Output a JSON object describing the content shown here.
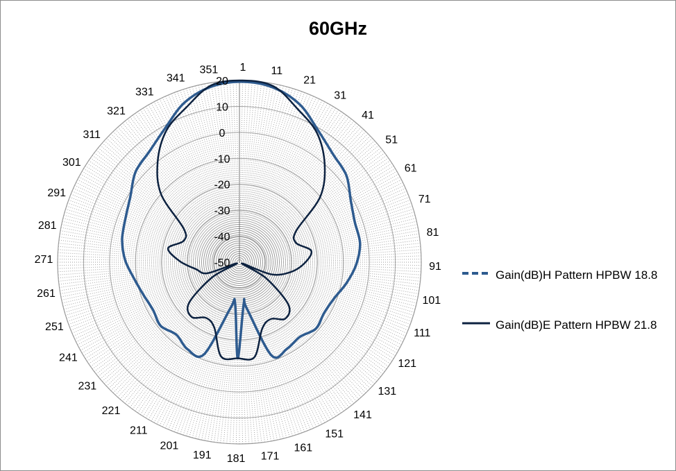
{
  "chart_data": {
    "type": "radar",
    "title": "60GHz",
    "angle_labels": [
      "1",
      "11",
      "21",
      "31",
      "41",
      "51",
      "61",
      "71",
      "81",
      "91",
      "101",
      "111",
      "121",
      "131",
      "141",
      "151",
      "161",
      "171",
      "181",
      "191",
      "201",
      "211",
      "221",
      "231",
      "241",
      "251",
      "261",
      "271",
      "281",
      "291",
      "301",
      "311",
      "321",
      "331",
      "341",
      "351"
    ],
    "radial_labels": [
      "-50",
      "-40",
      "-30",
      "-20",
      "-10",
      "0",
      "10",
      "20"
    ],
    "rlim": [
      -50,
      20
    ],
    "grid": true,
    "legend_position": "right",
    "series": [
      {
        "name": "Gain(dB)H Pattern HPBW 18.8",
        "style": "dashed",
        "color": "#2e5b8f",
        "angles": [
          1,
          11,
          21,
          31,
          41,
          51,
          61,
          71,
          81,
          91,
          101,
          111,
          121,
          131,
          141,
          151,
          161,
          171,
          174,
          181,
          186,
          191,
          201,
          211,
          221,
          231,
          241,
          251,
          261,
          271,
          281,
          291,
          301,
          311,
          321,
          331,
          341,
          351
        ],
        "values": [
          19.5,
          18.5,
          15,
          9,
          5,
          3,
          -1,
          -3,
          -3,
          -5,
          -8,
          -11,
          -12,
          -11,
          -13,
          -12,
          -12,
          -32,
          -34,
          -13,
          -34,
          -32,
          -12,
          -11,
          -13,
          -11,
          -12,
          -11,
          -9,
          -6,
          -4,
          -3,
          -1,
          3,
          5,
          9,
          15,
          18.5
        ]
      },
      {
        "name": "Gain(dB)E Pattern HPBW 21.8",
        "style": "solid",
        "color": "#0d2240",
        "angles": [
          1,
          11,
          21,
          31,
          41,
          51,
          61,
          71,
          81,
          91,
          101,
          111,
          116,
          121,
          131,
          141,
          151,
          161,
          171,
          181,
          191,
          201,
          211,
          221,
          231,
          241,
          246,
          251,
          261,
          271,
          281,
          291,
          301,
          311,
          321,
          331,
          341,
          351
        ],
        "values": [
          20,
          19,
          13,
          8,
          0,
          -10,
          -25,
          -27,
          -22,
          -25,
          -30,
          -37,
          -49,
          -38,
          -25,
          -22,
          -25,
          -23,
          -13,
          -13,
          -13,
          -23,
          -25,
          -22,
          -25,
          -38,
          -49,
          -37,
          -33,
          -27,
          -22,
          -27,
          -25,
          -10,
          0,
          8,
          13,
          19
        ]
      }
    ]
  }
}
